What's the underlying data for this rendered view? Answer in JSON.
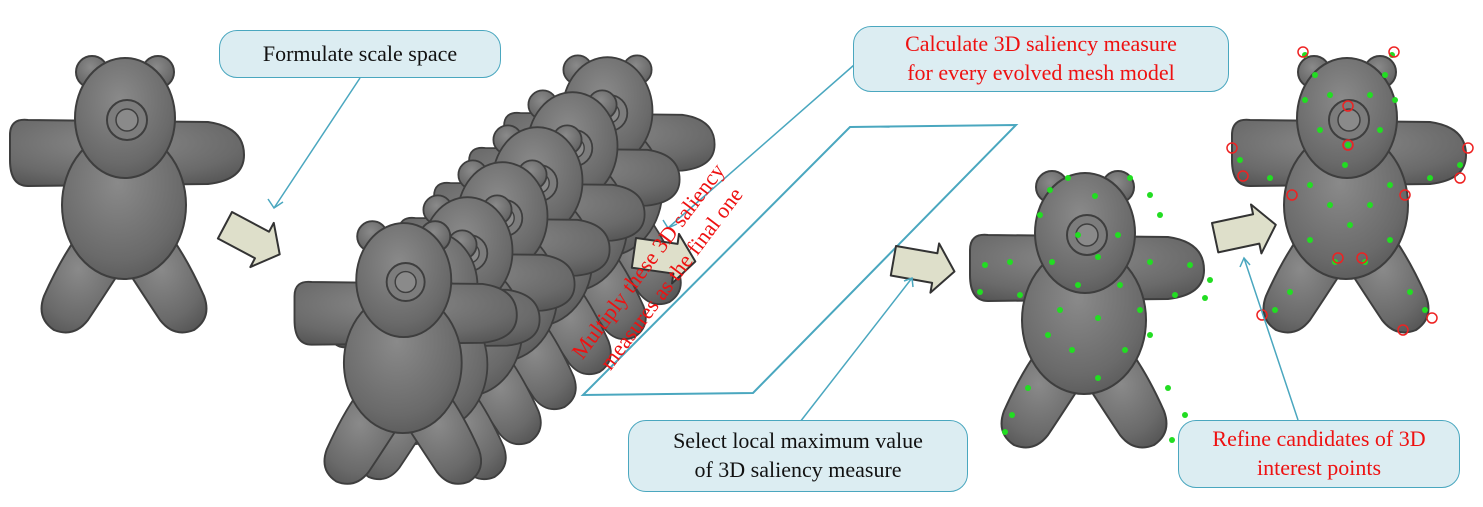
{
  "colors": {
    "mesh_fill": "#6e6e6e",
    "mesh_edge": "#3e3e3e",
    "arrow_fill": "#dedfca",
    "arrow_stroke": "#333333",
    "callout_fill": "#dcedf2",
    "callout_border": "#4aa7bf",
    "pointer_line": "#4aa7bf",
    "keypoint": "#22dd22",
    "refined_ring": "#ee2222",
    "red_text": "#ee1111"
  },
  "callouts": {
    "scale_space": {
      "line1": "Formulate scale space"
    },
    "saliency": {
      "line1": "Calculate 3D saliency measure",
      "line2": "for every evolved mesh model"
    },
    "multiply": {
      "line1": "Multiply these 3D saliency",
      "line2": "measures as the final one"
    },
    "local_max": {
      "line1": "Select local maximum value",
      "line2": "of 3D saliency measure"
    },
    "refine": {
      "line1": "Refine candidates of 3D",
      "line2": "interest points"
    }
  },
  "icons": {
    "model": "teddy-bear-mesh",
    "step_arrow": "block-right-arrow",
    "keypoint": "green-dot",
    "refined": "red-circle"
  }
}
